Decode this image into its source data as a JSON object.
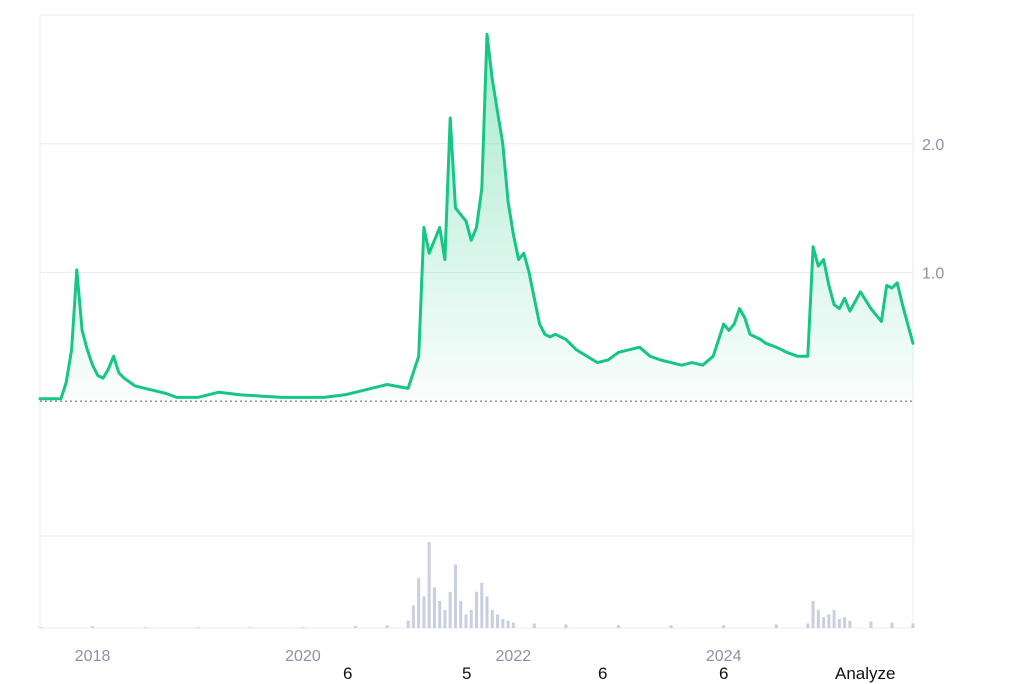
{
  "chart_data": {
    "type": "area",
    "x_ticks": [
      "2018",
      "2020",
      "2022",
      "2024"
    ],
    "y_ticks": [
      1.0,
      2.0
    ],
    "ylim": [
      -1.0,
      3.0
    ],
    "baseline": 0.0,
    "grid": true,
    "colors": {
      "line": "#16c784",
      "volume": "#c9cfe0",
      "grid": "#e9ebf0",
      "tick": "#8a93a6"
    },
    "series": [
      {
        "x": [
          2017.5,
          2017.6,
          2017.7,
          2017.75,
          2017.8,
          2017.85,
          2017.9,
          2017.95,
          2018.0,
          2018.05,
          2018.1,
          2018.15,
          2018.2,
          2018.25,
          2018.3,
          2018.35,
          2018.4,
          2018.5,
          2018.6,
          2018.7,
          2018.8,
          2018.9,
          2019.0,
          2019.2,
          2019.4,
          2019.6,
          2019.8,
          2020.0,
          2020.2,
          2020.4,
          2020.6,
          2020.8,
          2021.0,
          2021.1,
          2021.15,
          2021.2,
          2021.25,
          2021.3,
          2021.35,
          2021.4,
          2021.45,
          2021.5,
          2021.55,
          2021.6,
          2021.65,
          2021.7,
          2021.75,
          2021.8,
          2021.85,
          2021.9,
          2021.95,
          2022.0,
          2022.05,
          2022.1,
          2022.15,
          2022.2,
          2022.25,
          2022.3,
          2022.35,
          2022.4,
          2022.5,
          2022.6,
          2022.7,
          2022.8,
          2022.9,
          2023.0,
          2023.1,
          2023.2,
          2023.3,
          2023.4,
          2023.5,
          2023.6,
          2023.7,
          2023.8,
          2023.9,
          2024.0,
          2024.05,
          2024.1,
          2024.15,
          2024.2,
          2024.25,
          2024.3,
          2024.35,
          2024.4,
          2024.5,
          2024.6,
          2024.7,
          2024.8,
          2024.85,
          2024.9,
          2024.95,
          2025.0,
          2025.05,
          2025.1,
          2025.15,
          2025.2,
          2025.3,
          2025.4,
          2025.5,
          2025.55,
          2025.6,
          2025.65,
          2025.7,
          2025.75,
          2025.8
        ],
        "y": [
          0.02,
          0.02,
          0.02,
          0.15,
          0.4,
          1.02,
          0.55,
          0.4,
          0.28,
          0.2,
          0.18,
          0.25,
          0.35,
          0.22,
          0.18,
          0.15,
          0.12,
          0.1,
          0.08,
          0.06,
          0.03,
          0.03,
          0.03,
          0.07,
          0.05,
          0.04,
          0.03,
          0.03,
          0.03,
          0.05,
          0.09,
          0.13,
          0.1,
          0.35,
          1.35,
          1.15,
          1.25,
          1.35,
          1.1,
          2.2,
          1.5,
          1.45,
          1.4,
          1.25,
          1.35,
          1.65,
          2.85,
          2.5,
          2.25,
          2.0,
          1.55,
          1.3,
          1.1,
          1.15,
          1.0,
          0.8,
          0.6,
          0.52,
          0.5,
          0.52,
          0.48,
          0.4,
          0.35,
          0.3,
          0.32,
          0.38,
          0.4,
          0.42,
          0.35,
          0.32,
          0.3,
          0.28,
          0.3,
          0.28,
          0.35,
          0.6,
          0.55,
          0.6,
          0.72,
          0.65,
          0.52,
          0.5,
          0.48,
          0.45,
          0.42,
          0.38,
          0.35,
          0.35,
          1.2,
          1.05,
          1.1,
          0.9,
          0.75,
          0.72,
          0.8,
          0.7,
          0.85,
          0.72,
          0.62,
          0.9,
          0.88,
          0.92,
          0.75,
          0.6,
          0.45
        ]
      }
    ],
    "volume": {
      "x": [
        2017.5,
        2018.0,
        2018.5,
        2019.0,
        2019.5,
        2020.0,
        2020.5,
        2020.8,
        2021.0,
        2021.05,
        2021.1,
        2021.15,
        2021.2,
        2021.25,
        2021.3,
        2021.35,
        2021.4,
        2021.45,
        2021.5,
        2021.55,
        2021.6,
        2021.65,
        2021.7,
        2021.75,
        2021.8,
        2021.85,
        2021.9,
        2021.95,
        2022.0,
        2022.2,
        2022.5,
        2023.0,
        2023.5,
        2024.0,
        2024.5,
        2024.8,
        2024.85,
        2024.9,
        2024.95,
        2025.0,
        2025.05,
        2025.1,
        2025.15,
        2025.2,
        2025.4,
        2025.6,
        2025.8
      ],
      "y": [
        0.01,
        0.02,
        0.01,
        0.01,
        0.01,
        0.01,
        0.02,
        0.03,
        0.08,
        0.25,
        0.55,
        0.35,
        0.95,
        0.45,
        0.3,
        0.2,
        0.4,
        0.7,
        0.3,
        0.15,
        0.2,
        0.4,
        0.5,
        0.35,
        0.2,
        0.15,
        0.1,
        0.08,
        0.06,
        0.05,
        0.04,
        0.03,
        0.03,
        0.03,
        0.04,
        0.05,
        0.3,
        0.2,
        0.12,
        0.15,
        0.2,
        0.1,
        0.12,
        0.08,
        0.07,
        0.06,
        0.05
      ]
    }
  },
  "bottom_bar": {
    "items": [
      "6",
      "5",
      "6",
      "6"
    ],
    "action_label": "Analyze"
  }
}
